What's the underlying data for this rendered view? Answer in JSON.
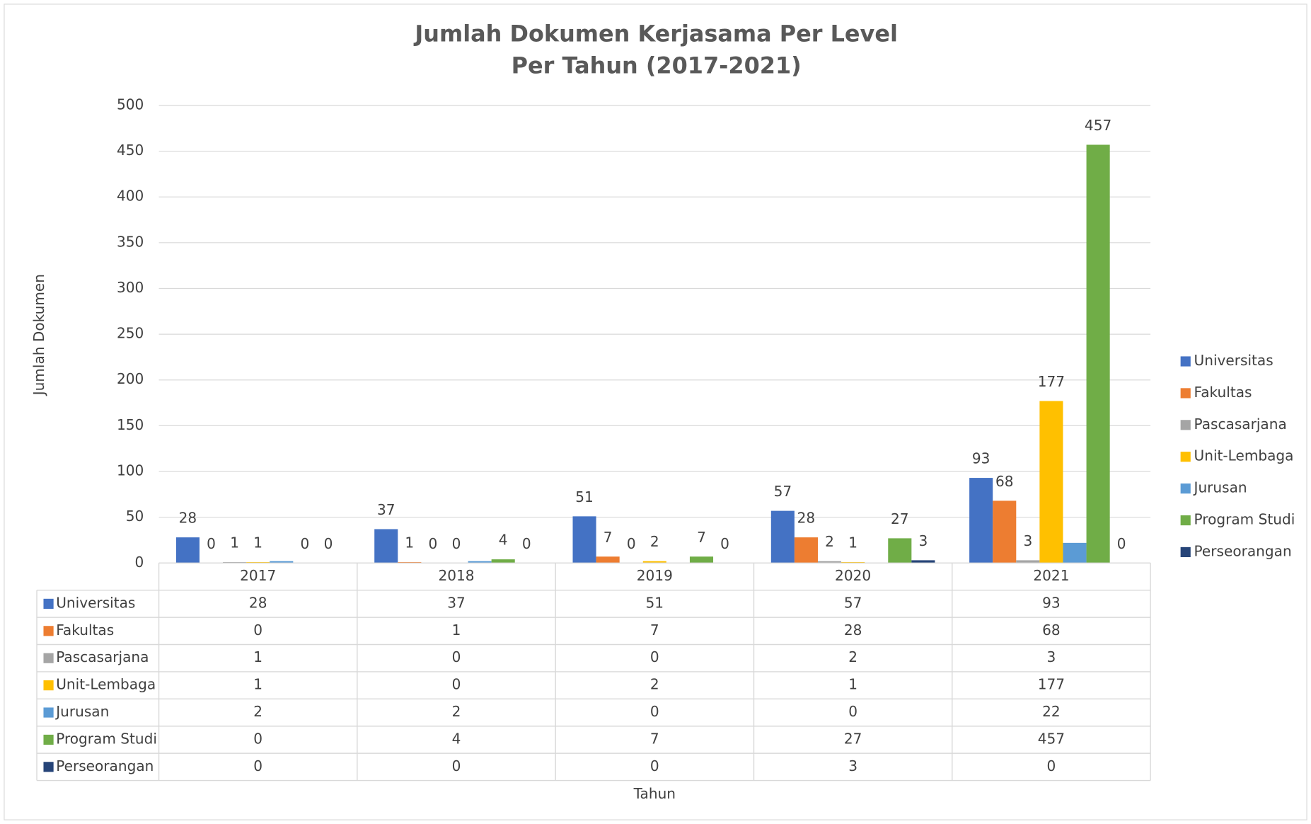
{
  "chart_data": {
    "type": "bar",
    "title": "Jumlah Dokumen Kerjasama Per Level",
    "subtitle": "Per Tahun (2017-2021)",
    "x_label": "Tahun",
    "y_label": "Jumlah Dokumen",
    "categories": [
      "2017",
      "2018",
      "2019",
      "2020",
      "2021"
    ],
    "series": [
      {
        "name": "Universitas",
        "color": "#4472c4",
        "values": [
          28,
          37,
          51,
          57,
          93
        ],
        "data_labels": true
      },
      {
        "name": "Fakultas",
        "color": "#ed7d31",
        "values": [
          0,
          1,
          7,
          28,
          68
        ],
        "data_labels": true
      },
      {
        "name": "Pascasarjana",
        "color": "#a5a5a5",
        "values": [
          1,
          0,
          0,
          2,
          3
        ],
        "data_labels": true
      },
      {
        "name": "Unit-Lembaga",
        "color": "#ffc000",
        "values": [
          1,
          0,
          2,
          1,
          177
        ],
        "data_labels": true
      },
      {
        "name": "Jurusan",
        "color": "#5b9bd5",
        "values": [
          2,
          2,
          0,
          0,
          22
        ],
        "data_labels": false
      },
      {
        "name": "Program Studi",
        "color": "#70ad47",
        "values": [
          0,
          4,
          7,
          27,
          457
        ],
        "data_labels": true
      },
      {
        "name": "Perseorangan",
        "color": "#264478",
        "values": [
          0,
          0,
          0,
          3,
          0
        ],
        "data_labels": true
      }
    ],
    "ylim": [
      0,
      500
    ],
    "yticks": [
      0,
      50,
      100,
      150,
      200,
      250,
      300,
      350,
      400,
      450,
      500
    ],
    "grid": true,
    "legend": "right",
    "data_table": true
  }
}
